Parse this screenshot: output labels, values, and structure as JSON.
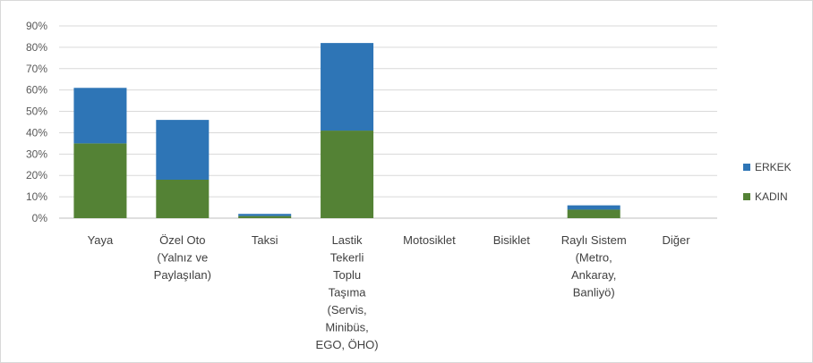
{
  "chart_data": {
    "type": "bar",
    "stacked": true,
    "categories": [
      [
        "Yaya"
      ],
      [
        "Özel Oto",
        "(Yalnız ve",
        "Paylaşılan)"
      ],
      [
        "Taksi"
      ],
      [
        "Lastik",
        "Tekerli",
        "Toplu",
        "Taşıma",
        "(Servis,",
        "Minibüs,",
        "EGO, ÖHO)"
      ],
      [
        "Motosiklet"
      ],
      [
        "Bisiklet"
      ],
      [
        "Raylı Sistem",
        "(Metro,",
        "Ankaray,",
        "Banliyö)"
      ],
      [
        "Diğer"
      ]
    ],
    "series": [
      {
        "name": "KADIN",
        "color": "#548235",
        "values": [
          35,
          18,
          1,
          41,
          0,
          0,
          4,
          0
        ]
      },
      {
        "name": "ERKEK",
        "color": "#2e75b6",
        "values": [
          26,
          28,
          1,
          41,
          0,
          0,
          2,
          0
        ]
      }
    ],
    "ylim": [
      0,
      90
    ],
    "yticks": [
      "0%",
      "10%",
      "20%",
      "30%",
      "40%",
      "50%",
      "60%",
      "70%",
      "80%",
      "90%"
    ],
    "legend_position": "right",
    "grid": true
  }
}
